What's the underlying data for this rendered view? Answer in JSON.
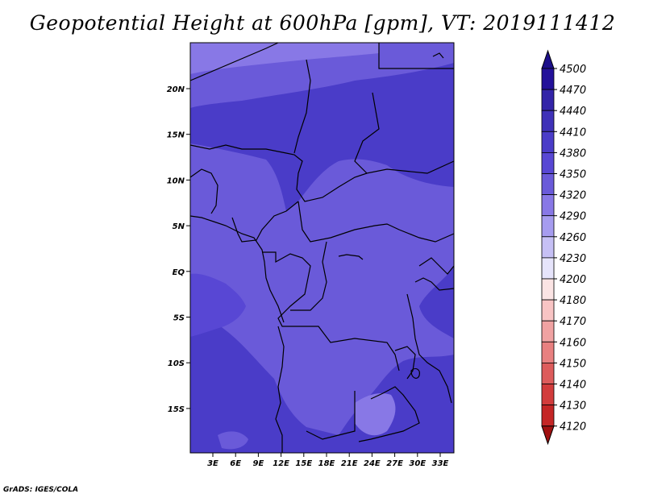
{
  "title": "Geopotential Height at 600hPa [gpm], VT: 2019111412",
  "credit": "GrADS: IGES/COLA",
  "map": {
    "lat_labels": [
      "20N",
      "15N",
      "10N",
      "5N",
      "EQ",
      "5S",
      "10S",
      "15S"
    ],
    "lon_labels": [
      "3E",
      "6E",
      "9E",
      "12E",
      "15E",
      "18E",
      "21E",
      "24E",
      "27E",
      "30E",
      "33E"
    ]
  },
  "colorbar": {
    "levels": [
      "4500",
      "4470",
      "4440",
      "4410",
      "4380",
      "4350",
      "4320",
      "4290",
      "4260",
      "4230",
      "4200",
      "4180",
      "4170",
      "4160",
      "4150",
      "4140",
      "4130",
      "4120"
    ],
    "colors": [
      "#23119a",
      "#3324a8",
      "#3f31b8",
      "#4a3cc8",
      "#5847d4",
      "#6a5ad9",
      "#8878e6",
      "#a69cef",
      "#c6c0f5",
      "#e6e4fb",
      "#fbe4e4",
      "#f8c4c4",
      "#f0a2a2",
      "#e88080",
      "#dd5c5c",
      "#d23c3c",
      "#c42626",
      "#b01515"
    ],
    "top_arrow_color": "#1c0f8a",
    "bottom_arrow_color": "#a01010"
  }
}
